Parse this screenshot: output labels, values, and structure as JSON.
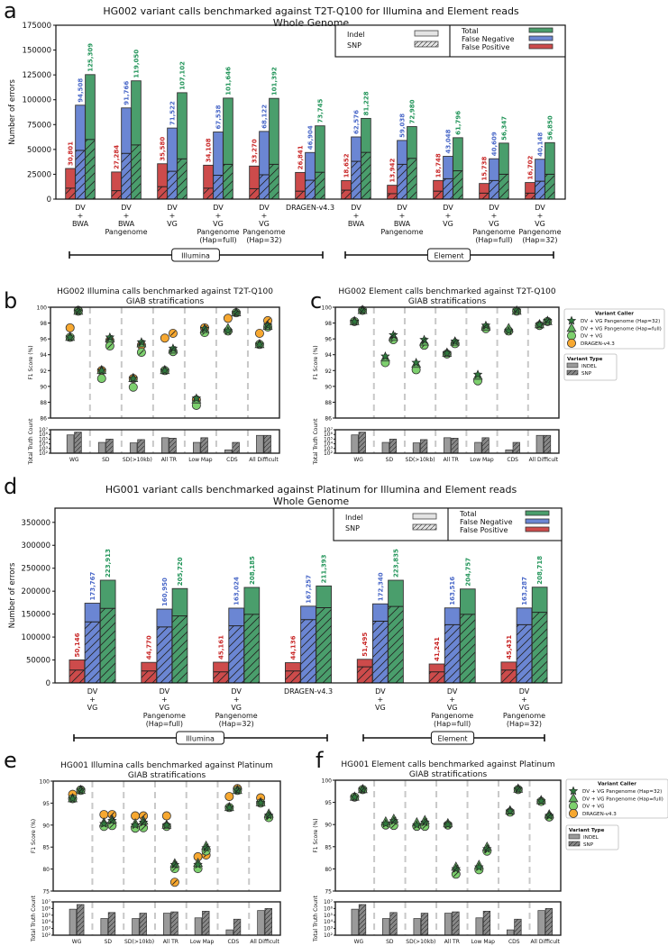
{
  "figure": {
    "panel_labels": [
      "a",
      "b",
      "c",
      "d",
      "e",
      "f"
    ]
  },
  "colors": {
    "false_positive": "#cd4b4b",
    "false_negative": "#6b86d3",
    "total": "#4a9e6c",
    "fp_label": "#c92a2a",
    "fn_label": "#4a68c8",
    "total_label": "#23955a",
    "star": "#2f7a3d",
    "triangle": "#5fb25c",
    "circle": "#7dd06e",
    "dragen": "#f7a830",
    "count_bar": "#9a9a9a"
  },
  "chart_data": [
    {
      "type": "bar",
      "panel": "a",
      "title": "HG002 variant calls benchmarked against T2T-Q100 for Illumina and Element reads",
      "subtitle": "Whole Genome",
      "ylabel": "Number of errors",
      "ylim": [
        0,
        175000
      ],
      "yticks": [
        "0",
        "25000",
        "50000",
        "75000",
        "100000",
        "125000",
        "150000",
        "175000"
      ],
      "categories": [
        [
          "DV",
          "+",
          "BWA"
        ],
        [
          "DV",
          "+",
          "BWA",
          "Pangenome"
        ],
        [
          "DV",
          "+",
          "VG"
        ],
        [
          "DV",
          "+",
          "VG",
          "Pangenome",
          "(Hap=full)"
        ],
        [
          "DV",
          "+",
          "VG",
          "Pangenome",
          "(Hap=32)"
        ],
        [
          "DRAGEN-v4.3"
        ],
        [
          "DV",
          "+",
          "BWA"
        ],
        [
          "DV",
          "+",
          "BWA",
          "Pangenome"
        ],
        [
          "DV",
          "+",
          "VG"
        ],
        [
          "DV",
          "+",
          "VG",
          "Pangenome",
          "(Hap=full)"
        ],
        [
          "DV",
          "+",
          "VG",
          "Pangenome",
          "(Hap=32)"
        ]
      ],
      "platforms": [
        {
          "name": "Illumina",
          "first": 0,
          "last": 5
        },
        {
          "name": "Element",
          "first": 6,
          "last": 10
        }
      ],
      "series": [
        {
          "name": "False Positive",
          "values": [
            30801,
            27284,
            35580,
            34108,
            33270,
            26841,
            18652,
            13942,
            18748,
            15738,
            16702
          ],
          "snp_values": [
            11000,
            8500,
            12500,
            11000,
            10500,
            8000,
            9000,
            5500,
            8000,
            6000,
            6000
          ]
        },
        {
          "name": "False Negative",
          "values": [
            94508,
            91766,
            71522,
            67538,
            68122,
            46904,
            62576,
            59038,
            43048,
            40609,
            40148
          ],
          "snp_values": [
            49000,
            46000,
            28000,
            24000,
            24500,
            19000,
            38000,
            35000,
            20500,
            18700,
            18000
          ]
        },
        {
          "name": "Total",
          "values": [
            125309,
            119050,
            107102,
            101646,
            101392,
            73745,
            81228,
            72980,
            61796,
            56347,
            56850
          ],
          "snp_values": [
            60000,
            54500,
            40500,
            35000,
            35000,
            27000,
            47000,
            41000,
            28500,
            25000,
            25000
          ]
        }
      ],
      "legend": {
        "variant_types": [
          "Indel",
          "SNP"
        ],
        "error_types": [
          "Total",
          "False Negative",
          "False Positive"
        ]
      }
    },
    {
      "type": "scatter",
      "panel": "b",
      "title": "HG002 Illumina calls benchmarked against T2T-Q100",
      "subtitle": "GIAB stratifications",
      "ylabel": "F1 Score (%)",
      "ylim": [
        86,
        100
      ],
      "yticks": [
        "86",
        "88",
        "90",
        "92",
        "94",
        "96",
        "98",
        "100"
      ],
      "categories": [
        "WG",
        "SD",
        "SD(>10kb)",
        "All TR",
        "Low Map",
        "CDS",
        "All Difficult"
      ],
      "callers": [
        {
          "name": "DRAGEN-v4.3",
          "marker": "dragen",
          "indel": [
            97.4,
            92.0,
            91.0,
            96.1,
            88.3,
            98.6,
            96.7
          ],
          "snp": [
            99.6,
            95.8,
            95.2,
            96.7,
            97.4,
            99.3,
            98.3
          ]
        },
        {
          "name": "DV + VG",
          "marker": "circle",
          "indel": [
            96.2,
            91.0,
            89.9,
            92.0,
            87.6,
            97.0,
            95.3
          ],
          "snp": [
            99.5,
            95.1,
            94.3,
            94.4,
            96.8,
            99.3,
            97.5
          ]
        },
        {
          "name": "DV + VG Pangenome (Hap=full)",
          "marker": "triangle",
          "indel": [
            96.2,
            92.0,
            91.0,
            92.0,
            88.3,
            97.3,
            95.3
          ],
          "snp": [
            99.5,
            96.0,
            95.4,
            94.6,
            97.2,
            99.3,
            97.6
          ]
        },
        {
          "name": "DV + VG Pangenome (Hap=32)",
          "marker": "star",
          "indel": [
            96.2,
            92.0,
            91.0,
            92.0,
            88.5,
            97.0,
            95.3
          ],
          "snp": [
            99.5,
            96.2,
            95.6,
            94.8,
            97.3,
            99.3,
            97.7
          ]
        }
      ],
      "truth_count": {
        "ylabel": "Total Truth Count",
        "yticks": [
          "10²",
          "10³",
          "10⁴",
          "10⁵",
          "10⁶",
          "10⁷"
        ],
        "log10_indel": [
          5.9,
          4.3,
          4.2,
          5.3,
          4.3,
          2.7,
          5.8
        ],
        "log10_snp": [
          6.5,
          5.0,
          4.9,
          5.2,
          5.3,
          4.3,
          5.8
        ]
      }
    },
    {
      "type": "scatter",
      "panel": "c",
      "title": "HG002 Element calls benchmarked against T2T-Q100",
      "subtitle": "GIAB stratifications",
      "ylabel": "F1 Score (%)",
      "ylim": [
        86,
        100
      ],
      "yticks": [
        "86",
        "88",
        "90",
        "92",
        "94",
        "96",
        "98",
        "100"
      ],
      "categories": [
        "WG",
        "SD",
        "SD(>10kb)",
        "All TR",
        "Low Map",
        "CDS",
        "All Difficult"
      ],
      "callers": [
        {
          "name": "DV + VG",
          "marker": "circle",
          "indel": [
            98.2,
            93.0,
            92.1,
            94.1,
            90.7,
            97.0,
            97.7
          ],
          "snp": [
            99.6,
            95.9,
            95.2,
            95.4,
            97.3,
            99.5,
            98.2
          ]
        },
        {
          "name": "DV + VG Pangenome (Hap=full)",
          "marker": "triangle",
          "indel": [
            98.2,
            93.6,
            92.8,
            94.2,
            91.3,
            97.3,
            97.8
          ],
          "snp": [
            99.6,
            96.2,
            95.6,
            95.6,
            97.5,
            99.5,
            98.2
          ]
        },
        {
          "name": "DV + VG Pangenome (Hap=32)",
          "marker": "star",
          "indel": [
            98.2,
            93.8,
            93.0,
            94.2,
            91.5,
            97.0,
            97.8
          ],
          "snp": [
            99.6,
            96.5,
            95.9,
            95.7,
            97.7,
            99.6,
            98.3
          ]
        }
      ],
      "truth_count": {
        "ylabel": "Total Truth Count",
        "yticks": [
          "10²",
          "10³",
          "10⁴",
          "10⁵",
          "10⁶",
          "10⁷"
        ],
        "log10_indel": [
          5.9,
          4.3,
          4.2,
          5.3,
          4.3,
          2.7,
          5.8
        ],
        "log10_snp": [
          6.5,
          5.0,
          4.9,
          5.2,
          5.3,
          4.3,
          5.8
        ]
      },
      "legend": {
        "caller_title": "Variant Caller",
        "callers": [
          "DV + VG Pangenome (Hap=32)",
          "DV + VG Pangenome (Hap=full)",
          "DV + VG",
          "DRAGEN-v4.3"
        ],
        "type_title": "Variant Type",
        "types": [
          "INDEL",
          "SNP"
        ]
      }
    },
    {
      "type": "bar",
      "panel": "d",
      "title": "HG001 variant calls benchmarked against Platinum for Illumina and Element reads",
      "subtitle": "Whole Genome",
      "ylabel": "Number of errors",
      "ylim": [
        0,
        381000
      ],
      "yticks": [
        "0",
        "50000",
        "100000",
        "150000",
        "200000",
        "250000",
        "300000",
        "350000"
      ],
      "categories": [
        [
          "DV",
          "+",
          "VG"
        ],
        [
          "DV",
          "+",
          "VG",
          "Pangenome",
          "(Hap=full)"
        ],
        [
          "DV",
          "+",
          "VG",
          "Pangenome",
          "(Hap=32)"
        ],
        [
          "DRAGEN-v4.3"
        ],
        [
          "DV",
          "+",
          "VG"
        ],
        [
          "DV",
          "+",
          "VG",
          "Pangenome",
          "(Hap=full)"
        ],
        [
          "DV",
          "+",
          "VG",
          "Pangenome",
          "(Hap=32)"
        ]
      ],
      "platforms": [
        {
          "name": "Illumina",
          "first": 0,
          "last": 3
        },
        {
          "name": "Element",
          "first": 4,
          "last": 6
        }
      ],
      "series": [
        {
          "name": "False Positive",
          "values": [
            50146,
            44770,
            45161,
            44136,
            51495,
            41241,
            45431
          ],
          "snp_values": [
            28000,
            26000,
            24000,
            26000,
            35000,
            24000,
            28000
          ]
        },
        {
          "name": "False Negative",
          "values": [
            173767,
            160950,
            163024,
            167257,
            172340,
            163516,
            163287
          ],
          "snp_values": [
            133000,
            122000,
            124500,
            138000,
            134500,
            127000,
            127000
          ]
        },
        {
          "name": "Total",
          "values": [
            223913,
            205720,
            208185,
            211393,
            223835,
            204757,
            208718
          ],
          "snp_values": [
            162500,
            146000,
            149500,
            164000,
            166700,
            149500,
            154000
          ]
        }
      ],
      "legend": {
        "variant_types": [
          "Indel",
          "SNP"
        ],
        "error_types": [
          "Total",
          "False Negative",
          "False Positive"
        ]
      }
    },
    {
      "type": "scatter",
      "panel": "e",
      "title": "HG001 Illumina calls benchmarked against Platinum",
      "subtitle": "GIAB stratifications",
      "ylabel": "F1 Score (%)",
      "ylim": [
        75,
        100
      ],
      "yticks": [
        "75",
        "80",
        "85",
        "90",
        "95",
        "100"
      ],
      "categories": [
        "WG",
        "SD",
        "SD(>10kb)",
        "All TR",
        "Low Map",
        "CDS",
        "All Difficult"
      ],
      "callers": [
        {
          "name": "DRAGEN-v4.3",
          "marker": "dragen",
          "indel": [
            97.0,
            92.4,
            92.1,
            92.1,
            82.8,
            96.5,
            96.2
          ],
          "snp": [
            98.0,
            92.4,
            92.1,
            77.0,
            83.2,
            98.3,
            91.9
          ]
        },
        {
          "name": "DV + VG",
          "marker": "circle",
          "indel": [
            96.0,
            89.7,
            89.3,
            89.7,
            80.1,
            94.0,
            95.0
          ],
          "snp": [
            97.9,
            89.9,
            89.4,
            80.1,
            84.1,
            97.9,
            91.7
          ]
        },
        {
          "name": "DV + VG Pangenome (Hap=full)",
          "marker": "triangle",
          "indel": [
            96.0,
            90.5,
            90.3,
            90.0,
            81.3,
            94.0,
            95.1
          ],
          "snp": [
            97.9,
            91.2,
            90.9,
            81.2,
            85.2,
            97.9,
            92.5
          ]
        },
        {
          "name": "DV + VG Pangenome (Hap=32)",
          "marker": "star",
          "indel": [
            96.0,
            90.3,
            90.0,
            90.0,
            81.0,
            94.0,
            95.1
          ],
          "snp": [
            97.9,
            91.0,
            90.6,
            81.0,
            84.8,
            97.9,
            92.2
          ]
        }
      ],
      "truth_count": {
        "ylabel": "Total Truth Count",
        "yticks": [
          "10²",
          "10³",
          "10⁴",
          "10⁵",
          "10⁶",
          "10⁷"
        ],
        "log10_indel": [
          5.9,
          4.5,
          4.5,
          5.3,
          4.6,
          2.8,
          5.7
        ],
        "log10_snp": [
          6.6,
          5.4,
          5.3,
          5.5,
          5.6,
          4.4,
          6.0
        ]
      }
    },
    {
      "type": "scatter",
      "panel": "f",
      "title": "HG001 Element calls benchmarked against Platinum",
      "subtitle": "GIAB stratifications",
      "ylabel": "F1 Score (%)",
      "ylim": [
        75,
        100
      ],
      "yticks": [
        "75",
        "80",
        "85",
        "90",
        "95",
        "100"
      ],
      "categories": [
        "WG",
        "SD",
        "SD(>10kb)",
        "All TR",
        "Low Map",
        "CDS",
        "All Difficult"
      ],
      "callers": [
        {
          "name": "DV + VG",
          "marker": "circle",
          "indel": [
            96.2,
            89.9,
            89.6,
            89.9,
            79.8,
            92.8,
            95.2
          ],
          "snp": [
            97.9,
            89.8,
            89.6,
            78.8,
            84.0,
            97.9,
            91.7
          ]
        },
        {
          "name": "DV + VG Pangenome (Hap=full)",
          "marker": "triangle",
          "indel": [
            96.2,
            90.6,
            90.4,
            90.2,
            80.8,
            93.1,
            95.4
          ],
          "snp": [
            97.9,
            91.2,
            90.9,
            80.4,
            84.9,
            98.0,
            92.2
          ]
        },
        {
          "name": "DV + VG Pangenome (Hap=32)",
          "marker": "star",
          "indel": [
            96.2,
            90.2,
            89.9,
            90.0,
            80.4,
            93.0,
            95.3
          ],
          "snp": [
            97.9,
            90.8,
            90.5,
            80.0,
            84.5,
            98.0,
            92.0
          ]
        }
      ],
      "truth_count": {
        "ylabel": "Total Truth Count",
        "yticks": [
          "10²",
          "10³",
          "10⁴",
          "10⁵",
          "10⁶",
          "10⁷"
        ],
        "log10_indel": [
          5.9,
          4.5,
          4.5,
          5.3,
          4.6,
          2.8,
          5.7
        ],
        "log10_snp": [
          6.6,
          5.4,
          5.3,
          5.5,
          5.6,
          4.4,
          6.0
        ]
      },
      "legend": {
        "caller_title": "Variant Caller",
        "callers": [
          "DV + VG Pangenome (Hap=32)",
          "DV + VG Pangenome (Hap=full)",
          "DV + VG",
          "DRAGEN-v4.3"
        ],
        "type_title": "Variant Type",
        "types": [
          "INDEL",
          "SNP"
        ]
      }
    }
  ]
}
